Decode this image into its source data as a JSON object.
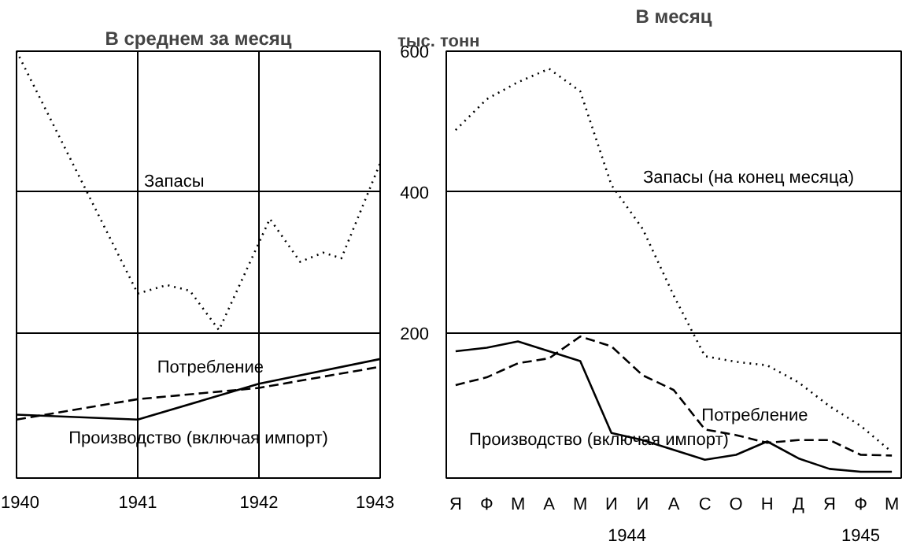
{
  "chart_data": [
    {
      "type": "line",
      "title": "В среднем за месяц",
      "x": [
        1940,
        1941,
        1942,
        1943
      ],
      "xlim": [
        1940,
        1943
      ],
      "xticks": [
        1940,
        1941,
        1942,
        1943
      ],
      "ylim": [
        -6,
        600
      ],
      "yticks": [
        200,
        400,
        600
      ],
      "tick_labels": "x",
      "grid": true,
      "series": [
        {
          "name": "Запасы",
          "color": "#000000",
          "line_style": "dotted",
          "x": [
            1940,
            1941,
            1941.24,
            1941.43,
            1941.67,
            1942.09,
            1942.34,
            1942.53,
            1942.68,
            1943
          ],
          "values": [
            600,
            256,
            268,
            260,
            204,
            362,
            301,
            314,
            306,
            441
          ]
        },
        {
          "name": "Потребление",
          "color": "#000000",
          "line_style": "dashed",
          "values": [
            77,
            106,
            122,
            152
          ]
        },
        {
          "name": "Производство (включая импорт)",
          "color": "#000000",
          "line_style": "solid",
          "values": [
            84,
            77,
            128,
            163
          ]
        }
      ]
    },
    {
      "type": "line",
      "title": "В месяц",
      "ylabel": "тыс. тонн",
      "categories": [
        "Я",
        "Ф",
        "М",
        "А",
        "М",
        "И",
        "И",
        "А",
        "С",
        "О",
        "Н",
        "Д",
        "Я",
        "Ф",
        "М"
      ],
      "annotations": [
        "1944",
        "1945"
      ],
      "ylim": [
        -6,
        600
      ],
      "yticks": [
        200,
        400,
        600
      ],
      "grid": "y",
      "series": [
        {
          "name": "Запасы (на конец месяца)",
          "color": "#000000",
          "line_style": "dotted",
          "values": [
            488,
            532,
            556,
            575,
            543,
            410,
            348,
            253,
            167,
            159,
            154,
            130,
            96,
            68,
            31
          ]
        },
        {
          "name": "Потребление",
          "color": "#000000",
          "line_style": "dashed",
          "values": [
            126,
            137,
            157,
            164,
            195,
            181,
            140,
            119,
            63,
            55,
            44,
            48,
            48,
            27,
            26
          ]
        },
        {
          "name": "Производство (включая импорт)",
          "color": "#000000",
          "line_style": "solid",
          "values": [
            174,
            179,
            188,
            174,
            160,
            58,
            48,
            34,
            20,
            27,
            46,
            22,
            7,
            3,
            3
          ]
        }
      ]
    }
  ]
}
